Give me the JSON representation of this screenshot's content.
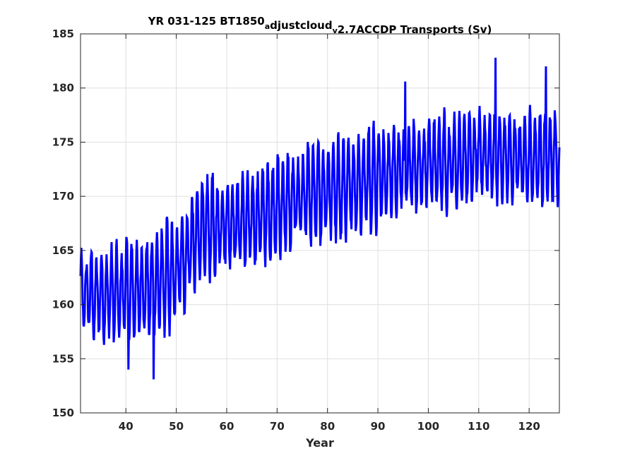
{
  "chart_data": {
    "type": "line",
    "title": {
      "parts": [
        {
          "text": "YR 031-125 BT1850",
          "sub": false
        },
        {
          "text": "a",
          "sub": true
        },
        {
          "text": "djustcloud",
          "sub": false
        },
        {
          "text": "v",
          "sub": true
        },
        {
          "text": "2.7ACCDP Transports (Sv)",
          "sub": false
        }
      ]
    },
    "xlabel": "Year",
    "ylabel": "",
    "xlim": [
      31,
      126
    ],
    "ylim": [
      150,
      185
    ],
    "xticks": [
      40,
      50,
      60,
      70,
      80,
      90,
      100,
      110,
      120
    ],
    "yticks": [
      150,
      155,
      160,
      165,
      170,
      175,
      180,
      185
    ],
    "grid": true,
    "series": [
      {
        "color": "#0000ff",
        "resolution": "monthly (12 points per year)",
        "yearly_trend": [
          [
            31,
            161.0
          ],
          [
            35,
            160.8
          ],
          [
            40,
            161.2
          ],
          [
            45,
            161.6
          ],
          [
            50,
            163.0
          ],
          [
            55,
            167.0
          ],
          [
            60,
            167.5
          ],
          [
            65,
            167.8
          ],
          [
            70,
            169.0
          ],
          [
            75,
            170.0
          ],
          [
            80,
            170.5
          ],
          [
            85,
            171.0
          ],
          [
            90,
            172.0
          ],
          [
            95,
            172.5
          ],
          [
            100,
            173.0
          ],
          [
            105,
            173.0
          ],
          [
            110,
            174.0
          ],
          [
            115,
            173.5
          ],
          [
            120,
            173.5
          ],
          [
            126,
            173.5
          ]
        ],
        "annual_amplitude": [
          [
            31,
            3.2
          ],
          [
            45,
            4.5
          ],
          [
            55,
            4.2
          ],
          [
            70,
            3.8
          ],
          [
            90,
            4.2
          ],
          [
            105,
            3.8
          ],
          [
            126,
            4.0
          ]
        ],
        "extremes": [
          {
            "x": 45.5,
            "y": 153.1
          },
          {
            "x": 40.5,
            "y": 154.0
          },
          {
            "x": 113.3,
            "y": 182.8
          },
          {
            "x": 123.3,
            "y": 182.0
          },
          {
            "x": 95.4,
            "y": 180.6
          }
        ]
      }
    ]
  }
}
